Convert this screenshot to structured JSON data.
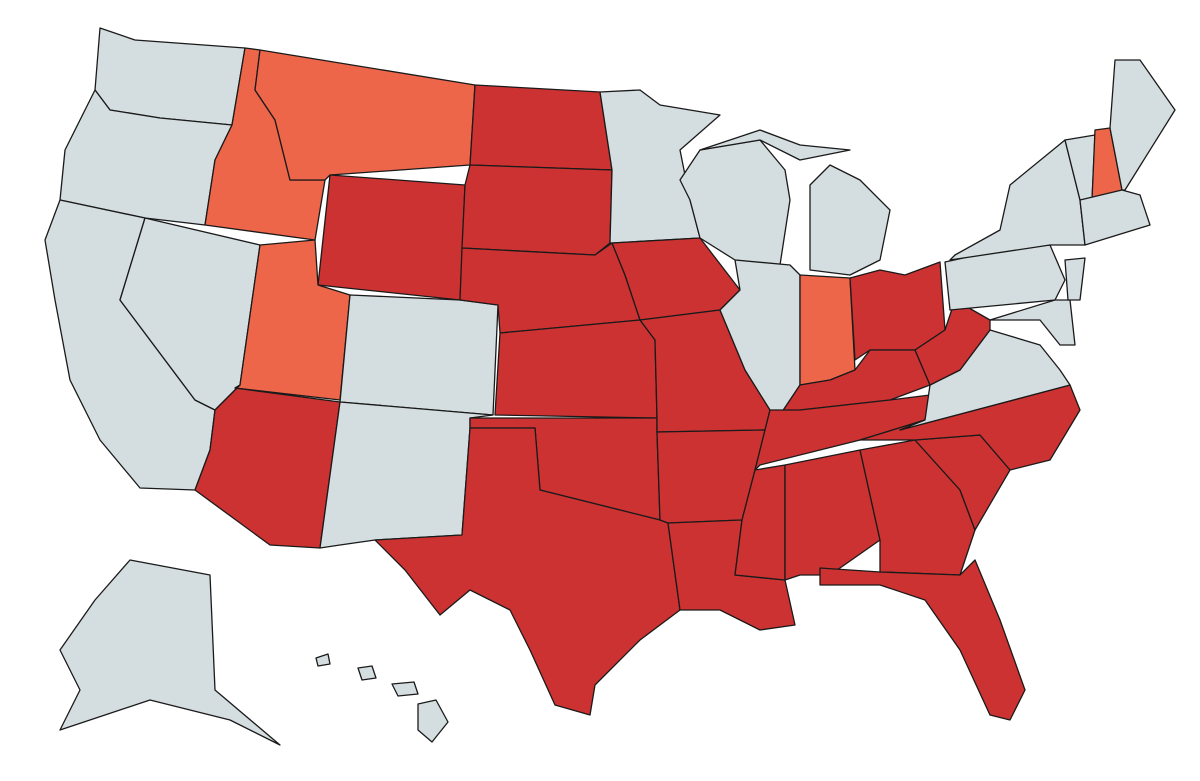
{
  "map": {
    "fills": [
      "#cd3232",
      "#ee664a",
      "#d4dde0"
    ],
    "border": "#1a1a1a"
  }
}
